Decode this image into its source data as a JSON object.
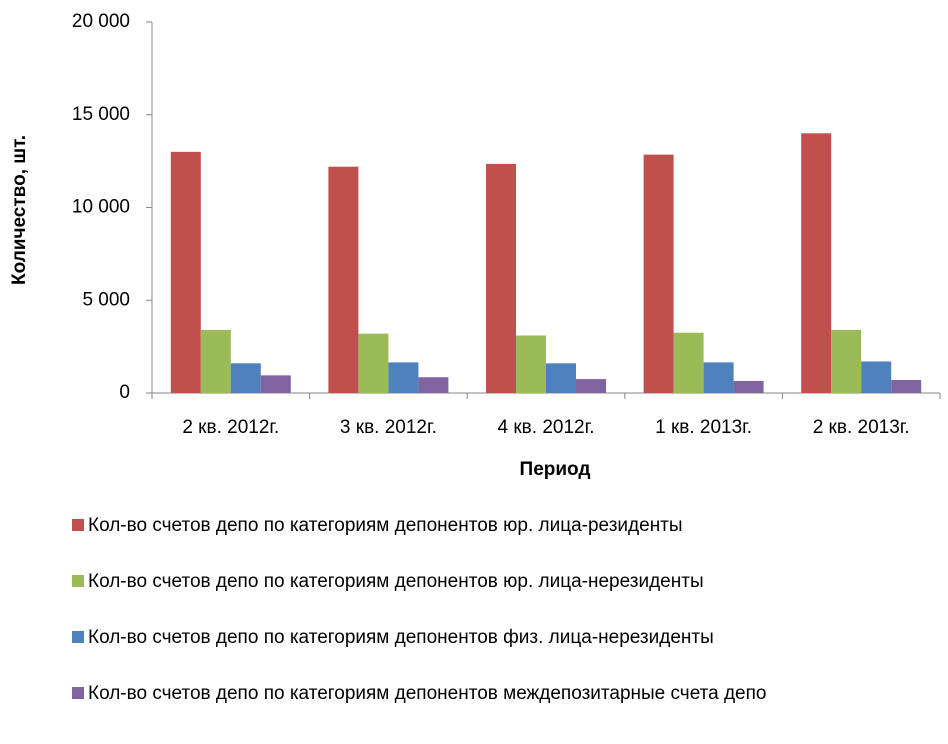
{
  "chart_data": {
    "type": "bar",
    "y_label": "Количество, шт.",
    "x_label": "Период",
    "categories": [
      "2 кв. 2012г.",
      "3 кв. 2012г.",
      "4 кв. 2012г.",
      "1 кв. 2013г.",
      "2 кв. 2013г."
    ],
    "series": [
      {
        "name": "Кол-во счетов депо по категориям депонентов юр. лица-резиденты",
        "color": "#c0504d",
        "values": [
          13000,
          12200,
          12350,
          12850,
          14000
        ]
      },
      {
        "name": "Кол-во счетов депо по категориям депонентов юр. лица-нерезиденты",
        "color": "#9bbb59",
        "values": [
          3400,
          3200,
          3100,
          3250,
          3400
        ]
      },
      {
        "name": "Кол-во счетов депо по категориям депонентов физ. лица-нерезиденты",
        "color": "#4f81bd",
        "values": [
          1600,
          1650,
          1600,
          1650,
          1700
        ]
      },
      {
        "name": "Кол-во счетов депо по категориям депонентов междепозитарные счета депо",
        "color": "#8064a2",
        "values": [
          950,
          850,
          750,
          650,
          700
        ]
      }
    ],
    "ylim": [
      0,
      20000
    ],
    "yticks": [
      0,
      {
        "value": 5000,
        "label": "5 000"
      },
      {
        "value": 10000,
        "label": "10 000"
      },
      {
        "value": 15000,
        "label": "15 000"
      },
      {
        "value": 20000,
        "label": "20 000"
      }
    ],
    "grid": false,
    "legend": "bottom"
  }
}
